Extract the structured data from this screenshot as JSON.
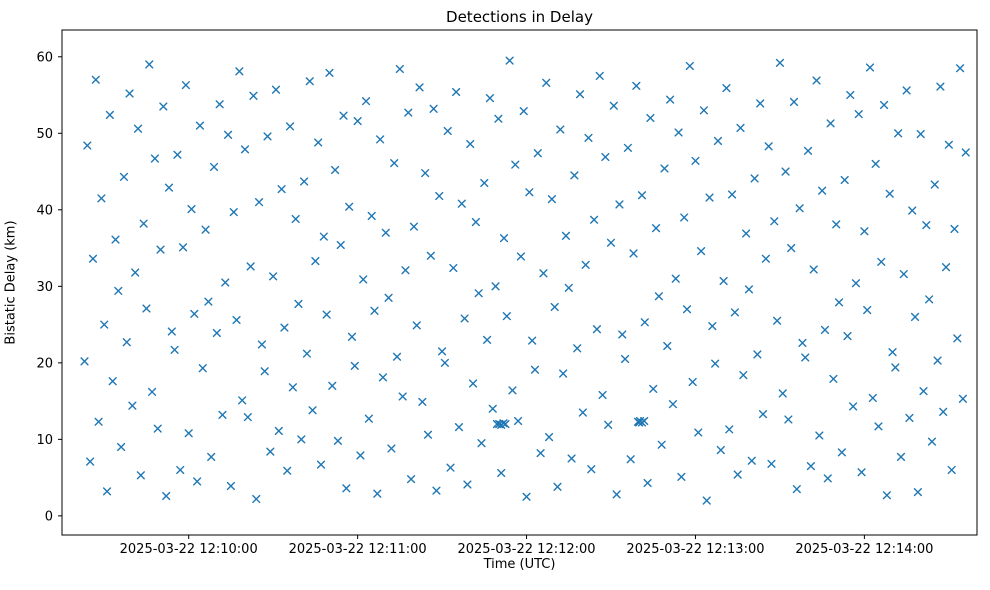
{
  "chart_data": {
    "type": "scatter",
    "title": "Detections in Delay",
    "xlabel": "Time (UTC)",
    "ylabel": "Bistatic Delay (km)",
    "marker": "x",
    "marker_color": "#1f77b4",
    "grid": false,
    "legend": null,
    "x_base_time": "2025-03-22 12:09:00",
    "xlim_seconds": [
      15,
      340
    ],
    "ylim": [
      -2.5,
      63.5
    ],
    "x_ticks": {
      "offsets_seconds": [
        60,
        120,
        180,
        240,
        300
      ],
      "labels": [
        "2025-03-22 12:10:00",
        "2025-03-22 12:11:00",
        "2025-03-22 12:12:00",
        "2025-03-22 12:13:00",
        "2025-03-22 12:14:00"
      ]
    },
    "y_ticks": {
      "values": [
        0,
        10,
        20,
        30,
        40,
        50,
        60
      ],
      "labels": [
        "0",
        "10",
        "20",
        "30",
        "40",
        "50",
        "60"
      ]
    },
    "points_format": "[seconds_after_base_time, bistatic_delay_km]",
    "points": [
      [
        23,
        20.2
      ],
      [
        24,
        48.4
      ],
      [
        25,
        7.1
      ],
      [
        26,
        33.6
      ],
      [
        27,
        57.0
      ],
      [
        28,
        12.3
      ],
      [
        29,
        41.5
      ],
      [
        30,
        25.0
      ],
      [
        31,
        3.2
      ],
      [
        32,
        52.4
      ],
      [
        33,
        17.6
      ],
      [
        34,
        36.1
      ],
      [
        35,
        29.4
      ],
      [
        36,
        9.0
      ],
      [
        37,
        44.3
      ],
      [
        38,
        22.7
      ],
      [
        39,
        55.2
      ],
      [
        40,
        14.4
      ],
      [
        41,
        31.8
      ],
      [
        42,
        50.6
      ],
      [
        43,
        5.3
      ],
      [
        44,
        38.2
      ],
      [
        45,
        27.1
      ],
      [
        46,
        59.0
      ],
      [
        47,
        16.2
      ],
      [
        48,
        46.7
      ],
      [
        49,
        11.4
      ],
      [
        50,
        34.8
      ],
      [
        51,
        53.5
      ],
      [
        52,
        2.6
      ],
      [
        53,
        42.9
      ],
      [
        54,
        24.1
      ],
      [
        55,
        21.7
      ],
      [
        56,
        47.2
      ],
      [
        57,
        6.0
      ],
      [
        58,
        35.1
      ],
      [
        59,
        56.3
      ],
      [
        60,
        10.8
      ],
      [
        61,
        40.1
      ],
      [
        62,
        26.4
      ],
      [
        63,
        4.5
      ],
      [
        64,
        51.0
      ],
      [
        65,
        19.3
      ],
      [
        66,
        37.4
      ],
      [
        67,
        28.0
      ],
      [
        68,
        7.7
      ],
      [
        69,
        45.6
      ],
      [
        70,
        23.9
      ],
      [
        71,
        53.8
      ],
      [
        72,
        13.2
      ],
      [
        73,
        30.5
      ],
      [
        74,
        49.8
      ],
      [
        75,
        3.9
      ],
      [
        76,
        39.7
      ],
      [
        77,
        25.6
      ],
      [
        78,
        58.1
      ],
      [
        79,
        15.1
      ],
      [
        80,
        47.9
      ],
      [
        81,
        12.9
      ],
      [
        82,
        32.6
      ],
      [
        83,
        54.9
      ],
      [
        84,
        2.2
      ],
      [
        85,
        41.0
      ],
      [
        86,
        22.4
      ],
      [
        87,
        18.9
      ],
      [
        88,
        49.6
      ],
      [
        89,
        8.4
      ],
      [
        90,
        31.3
      ],
      [
        91,
        55.7
      ],
      [
        92,
        11.1
      ],
      [
        93,
        42.7
      ],
      [
        94,
        24.6
      ],
      [
        95,
        5.9
      ],
      [
        96,
        50.9
      ],
      [
        97,
        16.8
      ],
      [
        98,
        38.8
      ],
      [
        99,
        27.7
      ],
      [
        100,
        10.0
      ],
      [
        101,
        43.7
      ],
      [
        102,
        21.2
      ],
      [
        103,
        56.8
      ],
      [
        104,
        13.8
      ],
      [
        105,
        33.3
      ],
      [
        106,
        48.8
      ],
      [
        107,
        6.7
      ],
      [
        108,
        36.5
      ],
      [
        109,
        26.3
      ],
      [
        110,
        57.9
      ],
      [
        111,
        17.0
      ],
      [
        112,
        45.2
      ],
      [
        113,
        9.8
      ],
      [
        114,
        35.4
      ],
      [
        115,
        52.3
      ],
      [
        116,
        3.6
      ],
      [
        117,
        40.4
      ],
      [
        118,
        23.4
      ],
      [
        119,
        19.6
      ],
      [
        120,
        51.6
      ],
      [
        121,
        7.9
      ],
      [
        122,
        30.9
      ],
      [
        123,
        54.2
      ],
      [
        124,
        12.7
      ],
      [
        125,
        39.2
      ],
      [
        126,
        26.8
      ],
      [
        127,
        2.9
      ],
      [
        128,
        49.2
      ],
      [
        129,
        18.1
      ],
      [
        130,
        37.0
      ],
      [
        131,
        28.5
      ],
      [
        132,
        8.8
      ],
      [
        133,
        46.1
      ],
      [
        134,
        20.8
      ],
      [
        135,
        58.4
      ],
      [
        136,
        15.6
      ],
      [
        137,
        32.1
      ],
      [
        138,
        52.7
      ],
      [
        139,
        4.8
      ],
      [
        140,
        37.8
      ],
      [
        141,
        24.9
      ],
      [
        142,
        56.0
      ],
      [
        143,
        14.9
      ],
      [
        144,
        44.8
      ],
      [
        145,
        10.6
      ],
      [
        146,
        34.0
      ],
      [
        147,
        53.2
      ],
      [
        148,
        3.3
      ],
      [
        149,
        41.8
      ],
      [
        150,
        21.5
      ],
      [
        151,
        20.0
      ],
      [
        152,
        50.3
      ],
      [
        153,
        6.3
      ],
      [
        154,
        32.4
      ],
      [
        155,
        55.4
      ],
      [
        156,
        11.6
      ],
      [
        157,
        40.8
      ],
      [
        158,
        25.8
      ],
      [
        159,
        4.1
      ],
      [
        160,
        48.6
      ],
      [
        161,
        17.3
      ],
      [
        162,
        38.4
      ],
      [
        163,
        29.1
      ],
      [
        164,
        9.5
      ],
      [
        165,
        43.5
      ],
      [
        166,
        23.0
      ],
      [
        167,
        54.6
      ],
      [
        168,
        14.0
      ],
      [
        169,
        30.0
      ],
      [
        170,
        51.9
      ],
      [
        171,
        5.6
      ],
      [
        172,
        36.3
      ],
      [
        173,
        26.1
      ],
      [
        174,
        59.5
      ],
      [
        175,
        16.4
      ],
      [
        176,
        45.9
      ],
      [
        177,
        12.4
      ],
      [
        178,
        33.9
      ],
      [
        179,
        52.9
      ],
      [
        180,
        2.5
      ],
      [
        181,
        42.3
      ],
      [
        182,
        22.9
      ],
      [
        183,
        19.1
      ],
      [
        184,
        47.4
      ],
      [
        185,
        8.2
      ],
      [
        186,
        31.7
      ],
      [
        187,
        56.6
      ],
      [
        188,
        10.3
      ],
      [
        189,
        41.4
      ],
      [
        190,
        27.3
      ],
      [
        191,
        3.8
      ],
      [
        192,
        50.5
      ],
      [
        193,
        18.6
      ],
      [
        194,
        36.6
      ],
      [
        195,
        29.8
      ],
      [
        196,
        7.5
      ],
      [
        197,
        44.5
      ],
      [
        198,
        21.9
      ],
      [
        199,
        55.1
      ],
      [
        200,
        13.5
      ],
      [
        201,
        32.8
      ],
      [
        202,
        49.4
      ],
      [
        203,
        6.1
      ],
      [
        204,
        38.7
      ],
      [
        205,
        24.4
      ],
      [
        206,
        57.5
      ],
      [
        207,
        15.8
      ],
      [
        208,
        46.9
      ],
      [
        209,
        11.9
      ],
      [
        210,
        35.7
      ],
      [
        211,
        53.6
      ],
      [
        212,
        2.8
      ],
      [
        213,
        40.7
      ],
      [
        214,
        23.7
      ],
      [
        215,
        20.5
      ],
      [
        216,
        48.1
      ],
      [
        217,
        7.4
      ],
      [
        218,
        34.3
      ],
      [
        219,
        56.2
      ],
      [
        220,
        12.2
      ],
      [
        221,
        41.9
      ],
      [
        222,
        25.3
      ],
      [
        223,
        4.3
      ],
      [
        224,
        52.0
      ],
      [
        225,
        16.6
      ],
      [
        226,
        37.6
      ],
      [
        227,
        28.7
      ],
      [
        228,
        9.3
      ],
      [
        229,
        45.4
      ],
      [
        230,
        22.2
      ],
      [
        231,
        54.4
      ],
      [
        232,
        14.6
      ],
      [
        233,
        31.0
      ],
      [
        234,
        50.1
      ],
      [
        235,
        5.1
      ],
      [
        236,
        39.0
      ],
      [
        237,
        27.0
      ],
      [
        238,
        58.8
      ],
      [
        239,
        17.5
      ],
      [
        240,
        46.4
      ],
      [
        241,
        10.9
      ],
      [
        242,
        34.6
      ],
      [
        243,
        53.0
      ],
      [
        244,
        2.0
      ],
      [
        245,
        41.6
      ],
      [
        246,
        24.8
      ],
      [
        247,
        19.9
      ],
      [
        248,
        49.0
      ],
      [
        249,
        8.6
      ],
      [
        250,
        30.7
      ],
      [
        251,
        55.9
      ],
      [
        252,
        11.3
      ],
      [
        253,
        42.0
      ],
      [
        254,
        26.6
      ],
      [
        255,
        5.4
      ],
      [
        256,
        50.7
      ],
      [
        257,
        18.4
      ],
      [
        258,
        36.9
      ],
      [
        259,
        29.6
      ],
      [
        260,
        7.2
      ],
      [
        261,
        44.1
      ],
      [
        262,
        21.1
      ],
      [
        263,
        53.9
      ],
      [
        264,
        13.3
      ],
      [
        265,
        33.6
      ],
      [
        266,
        48.3
      ],
      [
        267,
        6.8
      ],
      [
        268,
        38.5
      ],
      [
        269,
        25.5
      ],
      [
        270,
        59.2
      ],
      [
        271,
        16.0
      ],
      [
        272,
        45.0
      ],
      [
        273,
        12.6
      ],
      [
        274,
        35.0
      ],
      [
        275,
        54.1
      ],
      [
        276,
        3.5
      ],
      [
        277,
        40.2
      ],
      [
        278,
        22.6
      ],
      [
        279,
        20.7
      ],
      [
        280,
        47.7
      ],
      [
        281,
        6.5
      ],
      [
        282,
        32.2
      ],
      [
        283,
        56.9
      ],
      [
        284,
        10.5
      ],
      [
        285,
        42.5
      ],
      [
        286,
        24.3
      ],
      [
        287,
        4.9
      ],
      [
        288,
        51.3
      ],
      [
        289,
        17.9
      ],
      [
        290,
        38.1
      ],
      [
        291,
        27.9
      ],
      [
        292,
        8.3
      ],
      [
        293,
        43.9
      ],
      [
        294,
        23.5
      ],
      [
        295,
        55.0
      ],
      [
        296,
        14.3
      ],
      [
        297,
        30.4
      ],
      [
        298,
        52.5
      ],
      [
        299,
        5.7
      ],
      [
        300,
        37.2
      ],
      [
        301,
        26.9
      ],
      [
        302,
        58.6
      ],
      [
        303,
        15.4
      ],
      [
        304,
        46.0
      ],
      [
        305,
        11.7
      ],
      [
        306,
        33.2
      ],
      [
        307,
        53.7
      ],
      [
        308,
        2.7
      ],
      [
        309,
        42.1
      ],
      [
        310,
        21.4
      ],
      [
        311,
        19.4
      ],
      [
        312,
        50.0
      ],
      [
        313,
        7.7
      ],
      [
        314,
        31.6
      ],
      [
        315,
        55.6
      ],
      [
        316,
        12.8
      ],
      [
        317,
        39.9
      ],
      [
        318,
        26.0
      ],
      [
        319,
        3.1
      ],
      [
        320,
        49.9
      ],
      [
        321,
        16.3
      ],
      [
        322,
        38.0
      ],
      [
        323,
        28.3
      ],
      [
        324,
        9.7
      ],
      [
        325,
        43.3
      ],
      [
        326,
        20.3
      ],
      [
        327,
        56.1
      ],
      [
        328,
        13.6
      ],
      [
        329,
        32.5
      ],
      [
        330,
        48.5
      ],
      [
        331,
        6.0
      ],
      [
        332,
        37.5
      ],
      [
        333,
        23.2
      ],
      [
        334,
        58.5
      ],
      [
        335,
        15.3
      ],
      [
        336,
        47.5
      ],
      [
        169.5,
        12.0
      ],
      [
        170.3,
        12.0
      ],
      [
        171.0,
        11.9
      ],
      [
        171.8,
        12.1
      ],
      [
        172.5,
        12.0
      ],
      [
        219.6,
        12.3
      ],
      [
        220.3,
        12.4
      ],
      [
        221.0,
        12.2
      ],
      [
        221.8,
        12.4
      ]
    ]
  }
}
